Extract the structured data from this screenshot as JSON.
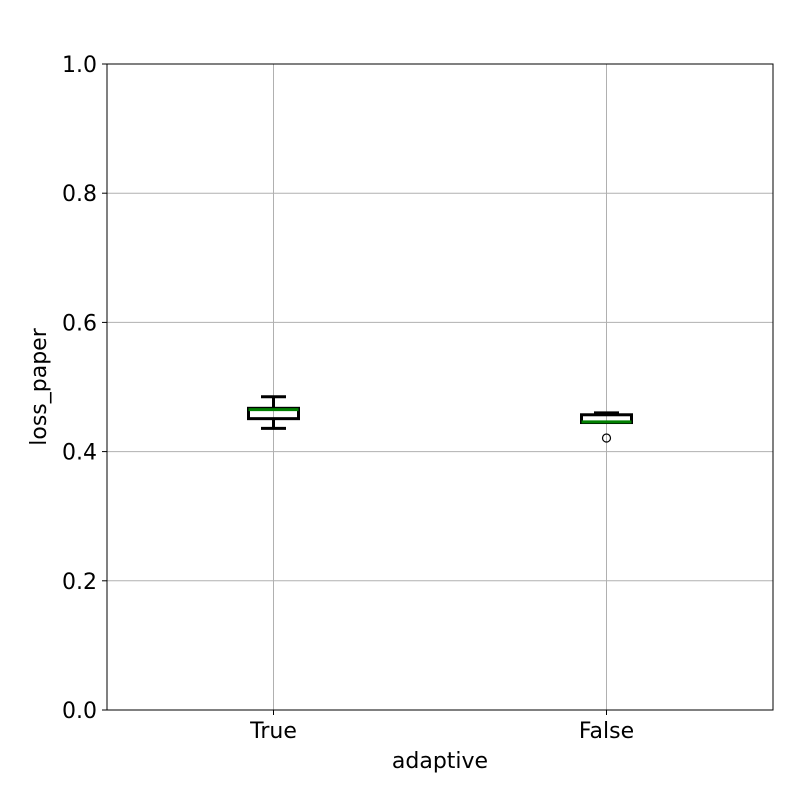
{
  "chart_data": {
    "type": "boxplot",
    "title": "",
    "xlabel": "adaptive",
    "ylabel": "loss_paper",
    "ylim": [
      0.0,
      1.0
    ],
    "yticks": [
      0.0,
      0.2,
      0.4,
      0.6,
      0.8,
      1.0
    ],
    "ytick_labels": [
      "0.0",
      "0.2",
      "0.4",
      "0.6",
      "0.8",
      "1.0"
    ],
    "grid": true,
    "categories": [
      "True",
      "False"
    ],
    "boxes": [
      {
        "category": "True",
        "whisker_low": 0.436,
        "q1": 0.451,
        "median": 0.465,
        "q3": 0.467,
        "whisker_high": 0.485,
        "fliers": []
      },
      {
        "category": "False",
        "whisker_low": 0.445,
        "q1": 0.445,
        "median": 0.446,
        "q3": 0.457,
        "whisker_high": 0.46,
        "fliers": [
          0.421
        ]
      }
    ],
    "colors": {
      "box": "#000000",
      "median": "#008000",
      "grid": "#b0b0b0",
      "flier": "#000000"
    }
  }
}
